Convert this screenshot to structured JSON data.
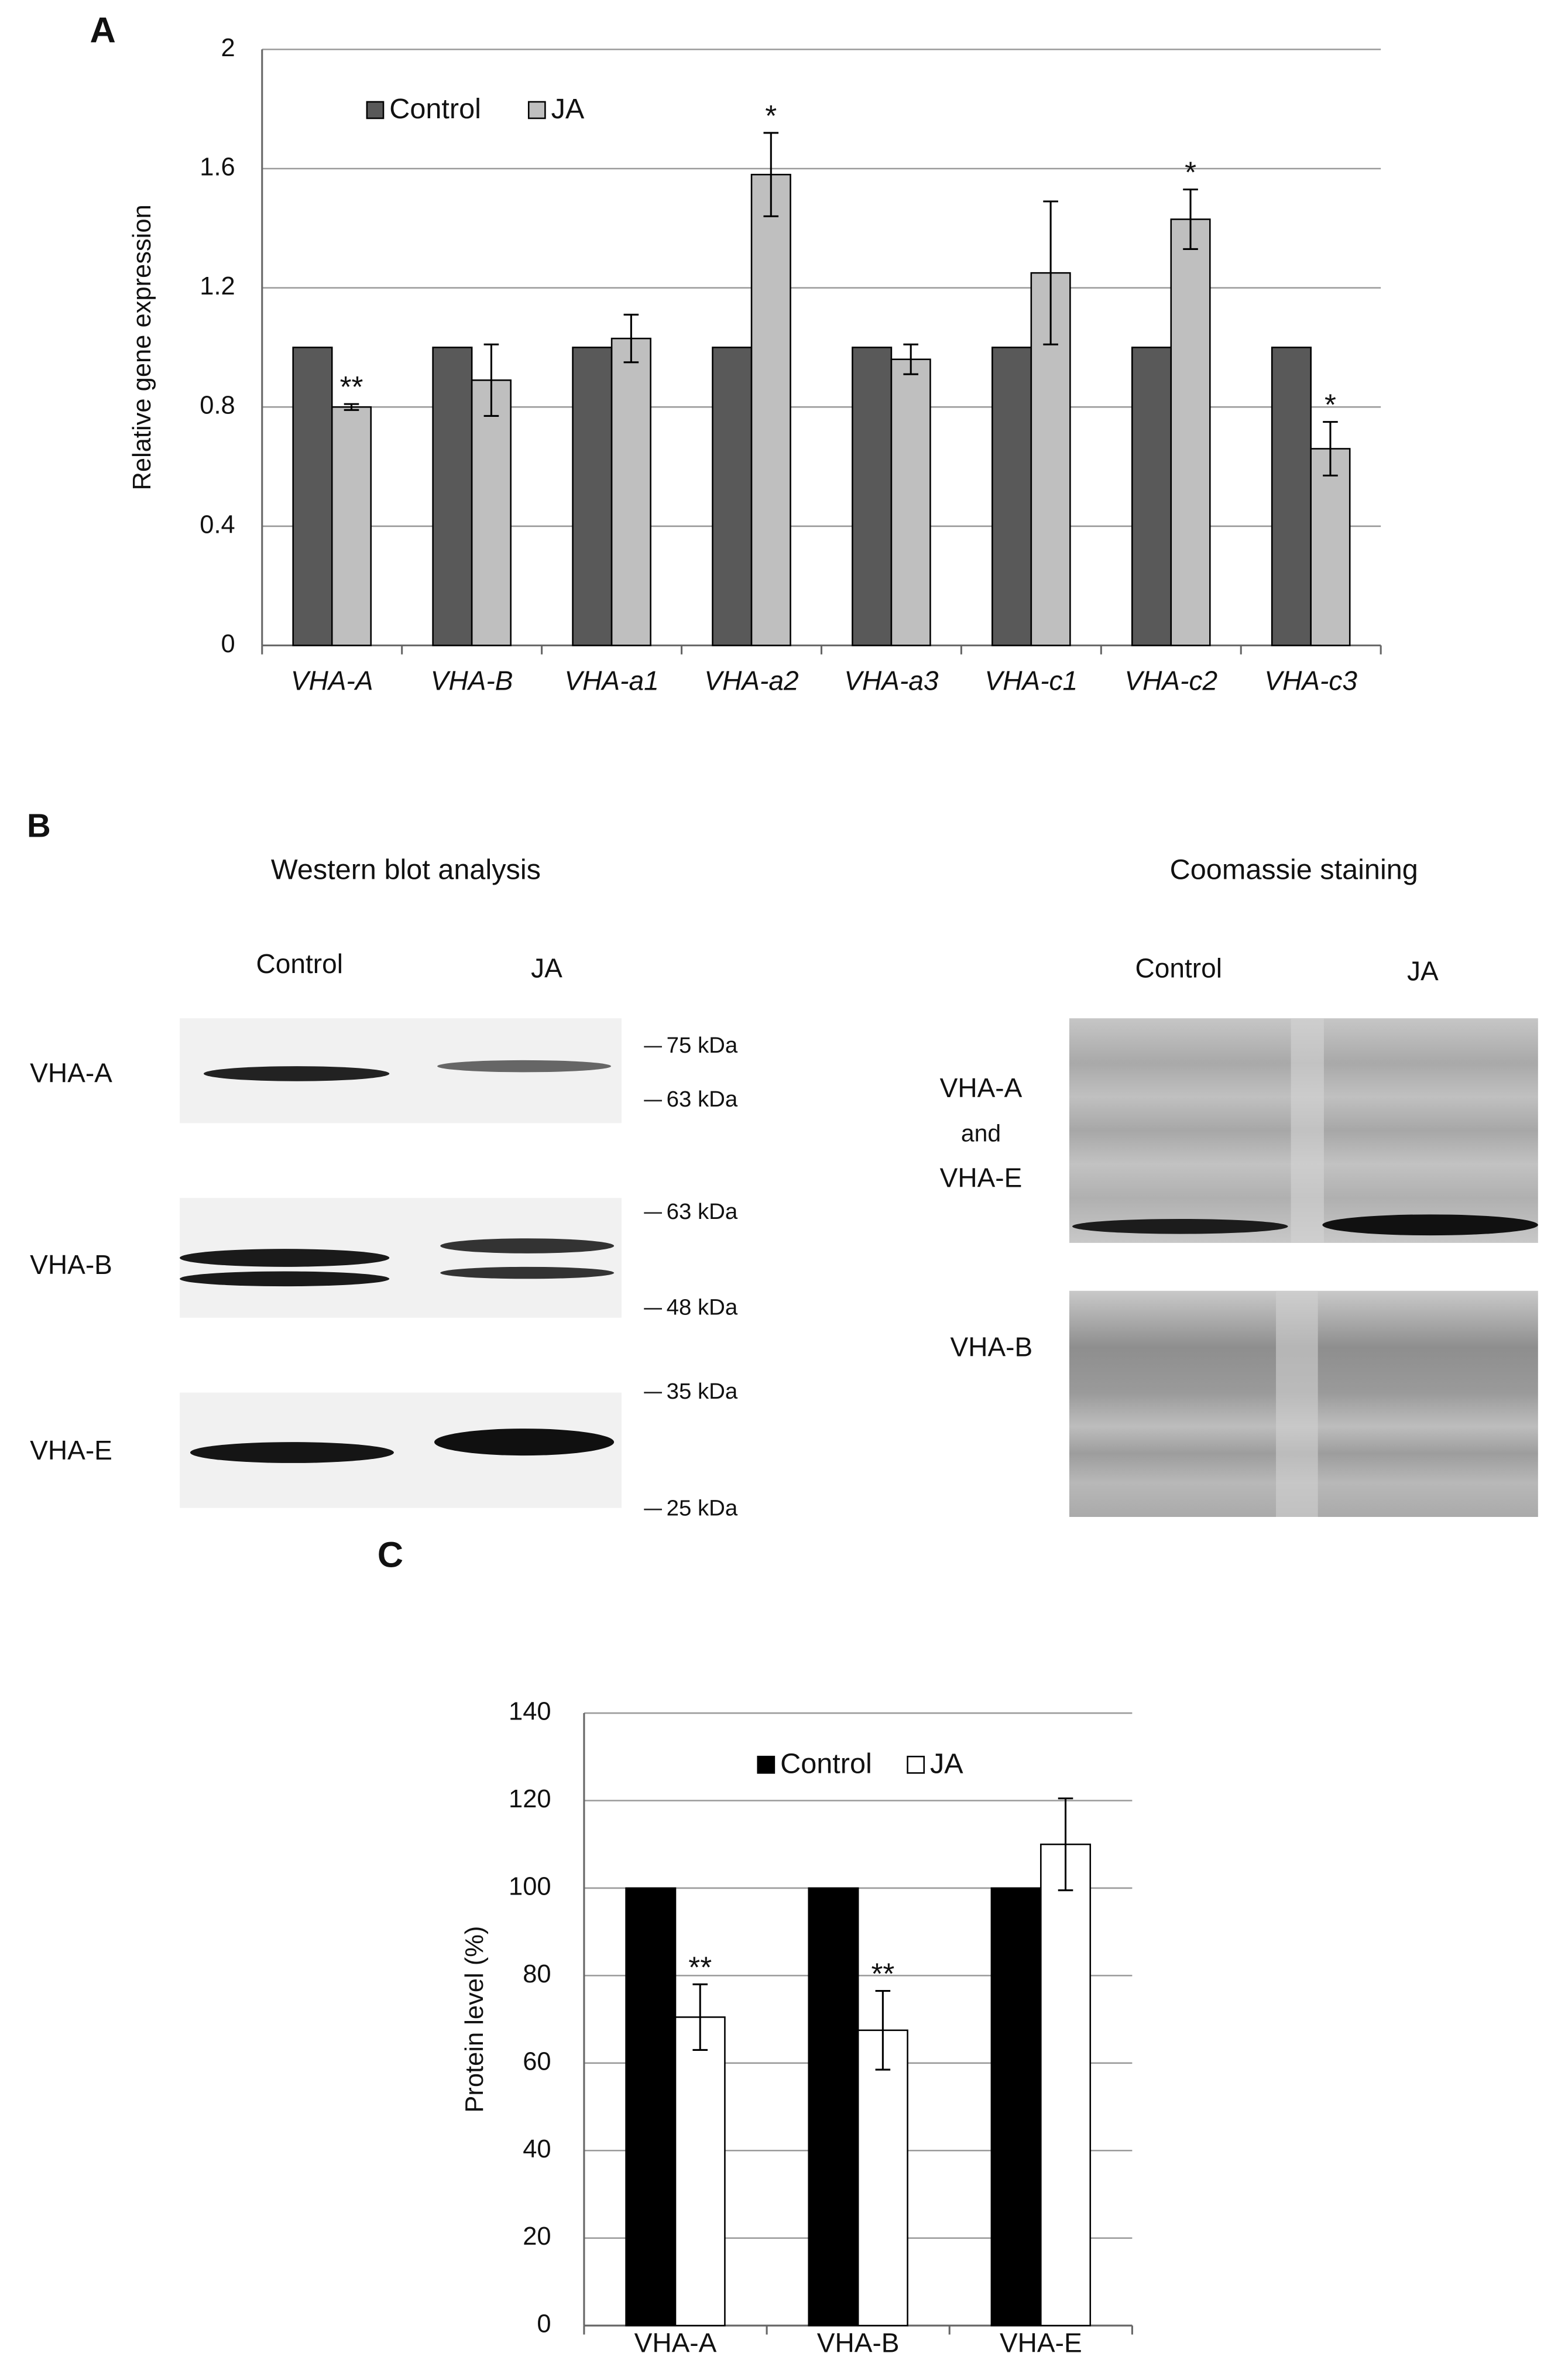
{
  "panel_labels": [
    "A",
    "B",
    "C"
  ],
  "chart_data": [
    {
      "type": "bar",
      "ylabel": "Relative  gene expression",
      "categories": [
        "VHA-A",
        "VHA-B",
        "VHA-a1",
        "VHA-a2",
        "VHA-a3",
        "VHA-c1",
        "VHA-c2",
        "VHA-c3"
      ],
      "series": [
        {
          "name": "Control",
          "color": "#595959",
          "values": [
            1,
            1,
            1,
            1,
            1,
            1,
            1,
            1
          ]
        },
        {
          "name": "JA",
          "color": "#bfbfbf",
          "values": [
            0.8,
            0.89,
            1.03,
            1.58,
            0.96,
            1.25,
            1.43,
            0.66
          ],
          "errors": [
            0.01,
            0.12,
            0.08,
            0.14,
            0.05,
            0.24,
            0.1,
            0.09
          ]
        }
      ],
      "significance": [
        "**",
        null,
        null,
        "*",
        null,
        null,
        "*",
        "*"
      ],
      "ylim": [
        0,
        2
      ],
      "yticks": [
        0,
        0.4,
        0.8,
        1.2,
        1.6,
        2
      ],
      "grid": true,
      "legend_position": "upper left",
      "italic_categories": true
    },
    {
      "type": "bar",
      "ylabel": "Protein level (%)",
      "categories": [
        "VHA-A",
        "VHA-B",
        "VHA-E"
      ],
      "series": [
        {
          "name": "Control",
          "color": "#000000",
          "values": [
            100,
            100,
            100
          ]
        },
        {
          "name": "JA",
          "color": "#ffffff",
          "values": [
            70.5,
            67.5,
            110
          ],
          "errors": [
            7.5,
            9,
            10.5
          ]
        }
      ],
      "significance": [
        "**",
        "**",
        null
      ],
      "ylim": [
        0,
        140
      ],
      "yticks": [
        0,
        20,
        40,
        60,
        80,
        100,
        120,
        140
      ],
      "grid": true,
      "legend_position": "upper center",
      "italic_categories": false
    }
  ],
  "blot": {
    "western_title": "Western blot analysis",
    "coomassie_title": "Coomassie staining",
    "western_lanes": [
      "Control",
      "JA"
    ],
    "coomassie_lanes": [
      "Control",
      "JA"
    ],
    "western_rows": [
      "VHA-A",
      "VHA-B",
      "VHA-E"
    ],
    "markers": [
      "75 kDa",
      "63 kDa",
      "63 kDa",
      "48 kDa",
      "35 kDa",
      "25 kDa"
    ],
    "coomassie_rows": [
      [
        "VHA-A",
        "and",
        "VHA-E"
      ],
      [
        "VHA-B"
      ]
    ]
  }
}
